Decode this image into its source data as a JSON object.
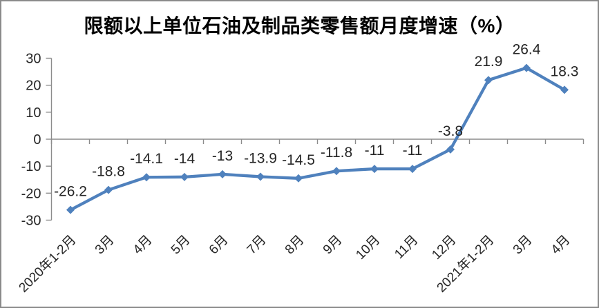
{
  "window": {
    "background": "#FFFFFF",
    "frame_border_color": "#8A8A8A"
  },
  "chart_data": {
    "type": "line",
    "title": "限额以上单位石油及制品类零售额月度增速（%）",
    "categories": [
      "2020年1-2月",
      "3月",
      "4月",
      "5月",
      "6月",
      "7月",
      "8月",
      "9月",
      "10月",
      "11月",
      "12月",
      "2021年1-2月",
      "3月",
      "4月"
    ],
    "series": [
      {
        "name": "月度增速",
        "values": [
          -26.2,
          -18.8,
          -14.1,
          -14,
          -13,
          -13.9,
          -14.5,
          -11.8,
          -11,
          -11,
          -3.8,
          21.9,
          26.4,
          18.3
        ],
        "data_labels": [
          "-26.2",
          "-18.8",
          "-14.1",
          "-14",
          "-13",
          "-13.9",
          "-14.5",
          "-11.8",
          "-11",
          "-11",
          "-3.8",
          "21.9",
          "26.4",
          "18.3"
        ]
      }
    ],
    "xlabel": "",
    "ylabel": "",
    "ylim": [
      -30,
      30
    ],
    "ytick_step": 10,
    "ytick_labels": [
      "30",
      "20",
      "10",
      "0",
      "-10",
      "-20",
      "-30"
    ],
    "grid": false,
    "legend": "none",
    "x_label_rotation": -45,
    "marker_shape": "diamond",
    "series_color": "#4F81BD",
    "axis_color": "#8C8C8C",
    "text_color": "#262626",
    "title_color": "#000000"
  }
}
